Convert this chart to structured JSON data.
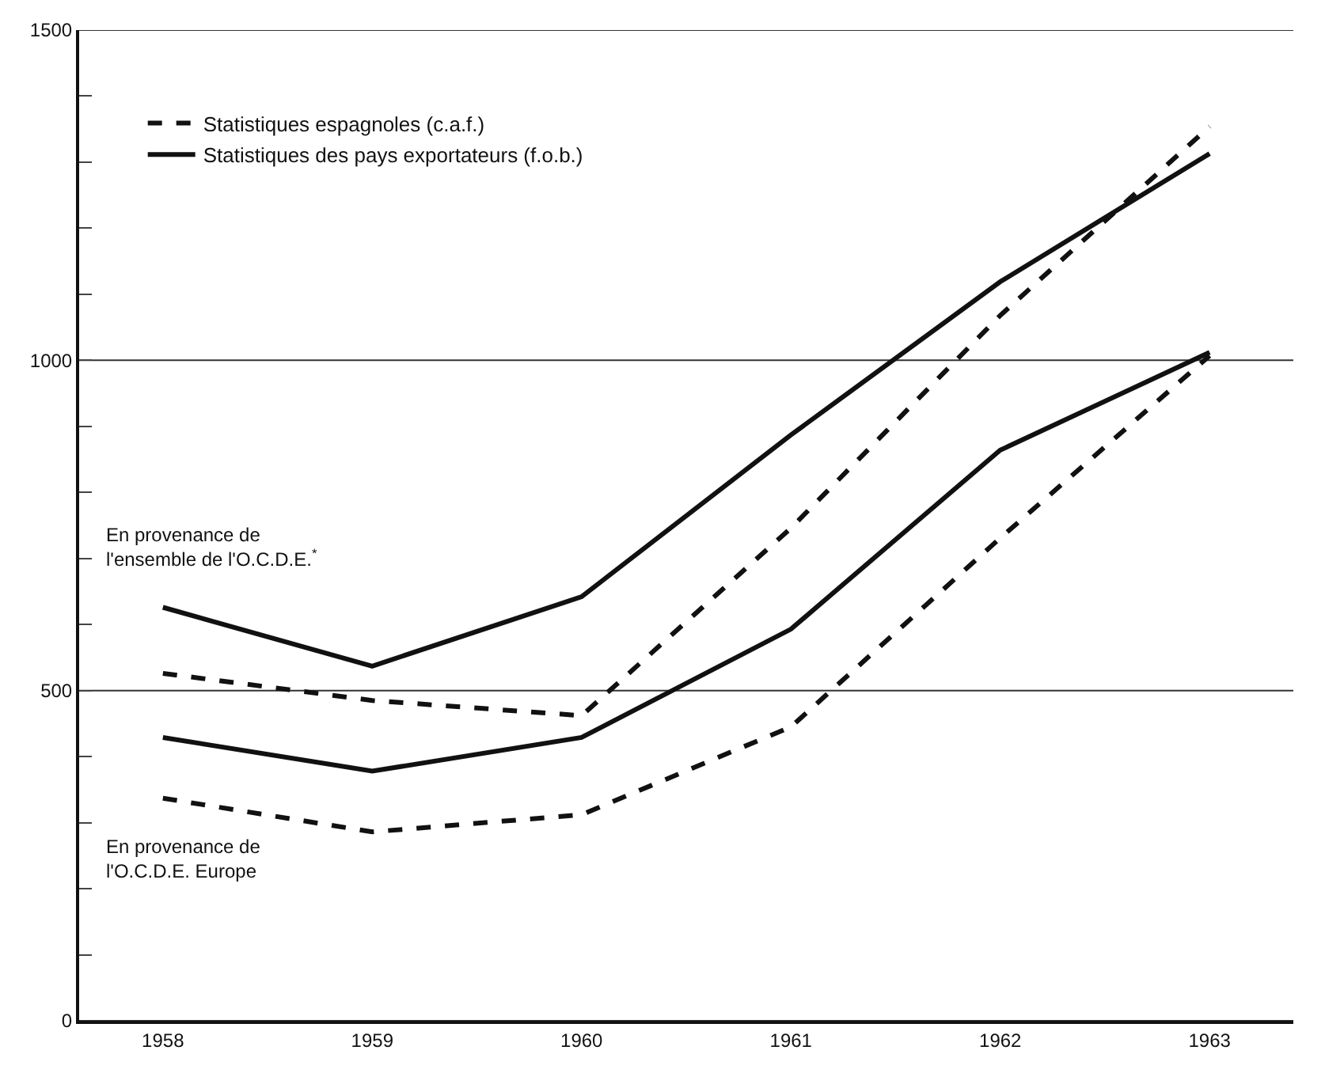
{
  "chart_data": {
    "type": "line",
    "categories": [
      "1958",
      "1959",
      "1960",
      "1961",
      "1962",
      "1963"
    ],
    "series": [
      {
        "name": "Statistiques espagnoles (c.a.f.)",
        "color": "#111111",
        "line_style": "dashed",
        "values": [
          526,
          485,
          462,
          746,
          1068,
          1354
        ]
      },
      {
        "name": "Statistiques des pays exportateurs (f.o.b.)",
        "color": "#111111",
        "line_style": "solid",
        "values": [
          626,
          537,
          642,
          887,
          1119,
          1313
        ]
      },
      {
        "color": "#111111",
        "line_style": "dashed",
        "values": [
          337,
          286,
          312,
          445,
          731,
          1007
        ]
      },
      {
        "color": "#111111",
        "line_style": "solid",
        "values": [
          429,
          378,
          429,
          593,
          864,
          1012
        ]
      }
    ],
    "ylim": [
      0,
      1500
    ],
    "yticks": [
      0,
      {
        "value": 100,
        "label": null
      },
      {
        "value": 200,
        "label": null
      },
      {
        "value": 300,
        "label": null
      },
      {
        "value": 400,
        "label": null
      },
      500,
      {
        "value": 600,
        "label": null
      },
      {
        "value": 700,
        "label": null
      },
      {
        "value": 800,
        "label": null
      },
      {
        "value": 900,
        "label": null
      },
      1000,
      {
        "value": 1100,
        "label": null
      },
      {
        "value": 1200,
        "label": null
      },
      {
        "value": 1300,
        "label": null
      },
      {
        "value": 1400,
        "label": null
      },
      1500
    ],
    "grid": "y",
    "legend": "top left",
    "marker": "none",
    "annotations": [
      "En provenance de\nl'ensemble de l'O.C.D.E.$^{*}$",
      "En provenance de\nl'O.C.D.E. Europe"
    ]
  }
}
